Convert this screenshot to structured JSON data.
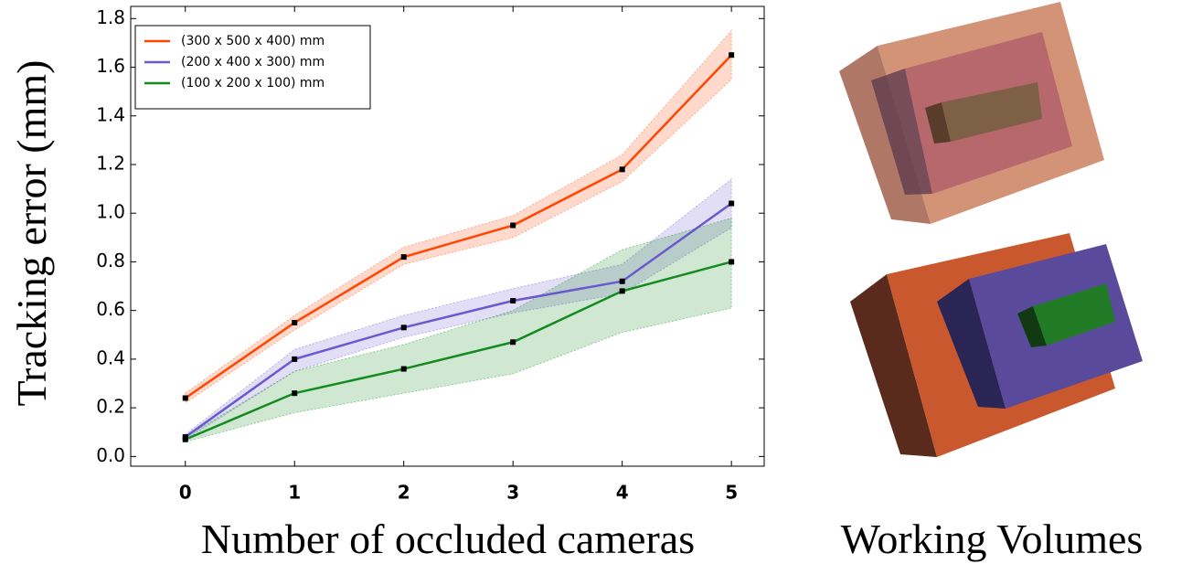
{
  "chart_data": {
    "type": "line",
    "xlabel": "Number of occluded cameras",
    "ylabel": "Tracking error (mm)",
    "side_label": "Working Volumes",
    "x": [
      0,
      1,
      2,
      3,
      4,
      5
    ],
    "xlim": [
      -0.5,
      5.3
    ],
    "xticks": [
      0,
      1,
      2,
      3,
      4,
      5
    ],
    "ylim": [
      -0.04,
      1.85
    ],
    "yticks": [
      {
        "value": 0,
        "label": "0.0"
      },
      0.2,
      0.4,
      0.6,
      0.8,
      {
        "value": 1,
        "label": "1.0"
      },
      1.2,
      1.4,
      1.6,
      1.8
    ],
    "legend": "upper left",
    "series": [
      {
        "name": "(300 x 500 x 400) mm",
        "color": "#ff4500",
        "values": [
          0.24,
          0.55,
          0.82,
          0.95,
          1.18,
          1.65
        ],
        "lower": [
          0.22,
          0.52,
          0.79,
          0.9,
          1.13,
          1.55
        ],
        "upper": [
          0.26,
          0.58,
          0.86,
          0.99,
          1.24,
          1.75
        ]
      },
      {
        "name": "(200 x 400 x 300) mm",
        "color": "#6a5acd",
        "values": [
          0.08,
          0.4,
          0.53,
          0.64,
          0.72,
          1.04
        ],
        "lower": [
          0.07,
          0.35,
          0.49,
          0.59,
          0.67,
          0.94
        ],
        "upper": [
          0.09,
          0.44,
          0.58,
          0.69,
          0.79,
          1.14
        ]
      },
      {
        "name": "(100 x 200 x 100) mm",
        "color": "#138b20",
        "values": [
          0.07,
          0.26,
          0.36,
          0.47,
          0.68,
          0.8
        ],
        "lower": [
          0.06,
          0.18,
          0.26,
          0.34,
          0.51,
          0.61
        ],
        "upper": [
          0.08,
          0.35,
          0.46,
          0.6,
          0.85,
          0.98
        ]
      }
    ]
  }
}
